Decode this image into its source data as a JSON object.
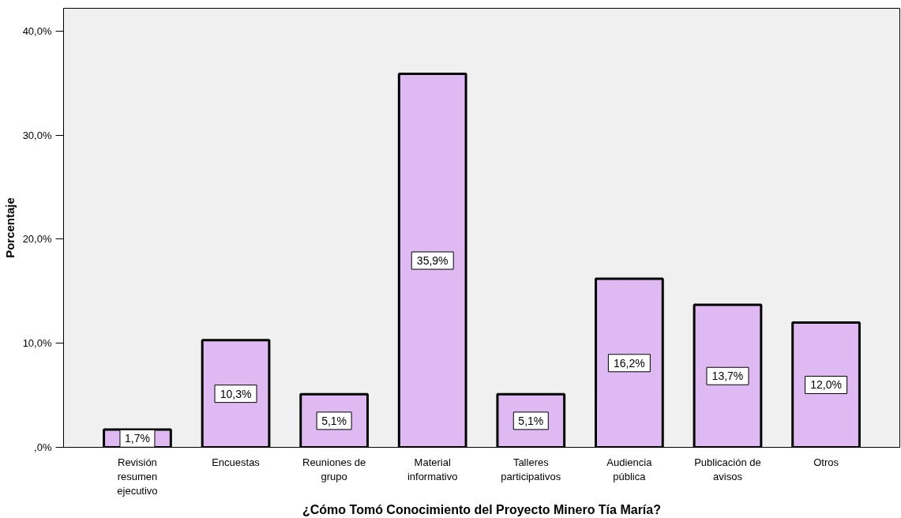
{
  "chart_data": {
    "type": "bar",
    "xlabel": "¿Cómo Tomó Conocimiento del Proyecto Minero Tía María?",
    "ylabel": "Porcentaje",
    "categories": [
      "Revisión resumen ejecutivo",
      "Encuestas",
      "Reuniones de grupo",
      "Material informativo",
      "Talleres participativos",
      "Audiencia pública",
      "Publicación de avisos",
      "Otros"
    ],
    "values": [
      1.7,
      10.3,
      5.1,
      35.9,
      5.1,
      16.2,
      13.7,
      12.0
    ],
    "value_labels": [
      "1,7%",
      "10,3%",
      "5,1%",
      "35,9%",
      "5,1%",
      "16,2%",
      "13,7%",
      "12,0%"
    ],
    "color": "#dfb9f2",
    "ylim": [
      0,
      42.2
    ],
    "yticks": [
      {
        "value": 0,
        "label": ",0%"
      },
      {
        "value": 10,
        "label": "10,0%"
      },
      {
        "value": 20,
        "label": "20,0%"
      },
      {
        "value": 30,
        "label": "30,0%"
      },
      {
        "value": 40,
        "label": "40,0%"
      }
    ],
    "grid": false
  }
}
